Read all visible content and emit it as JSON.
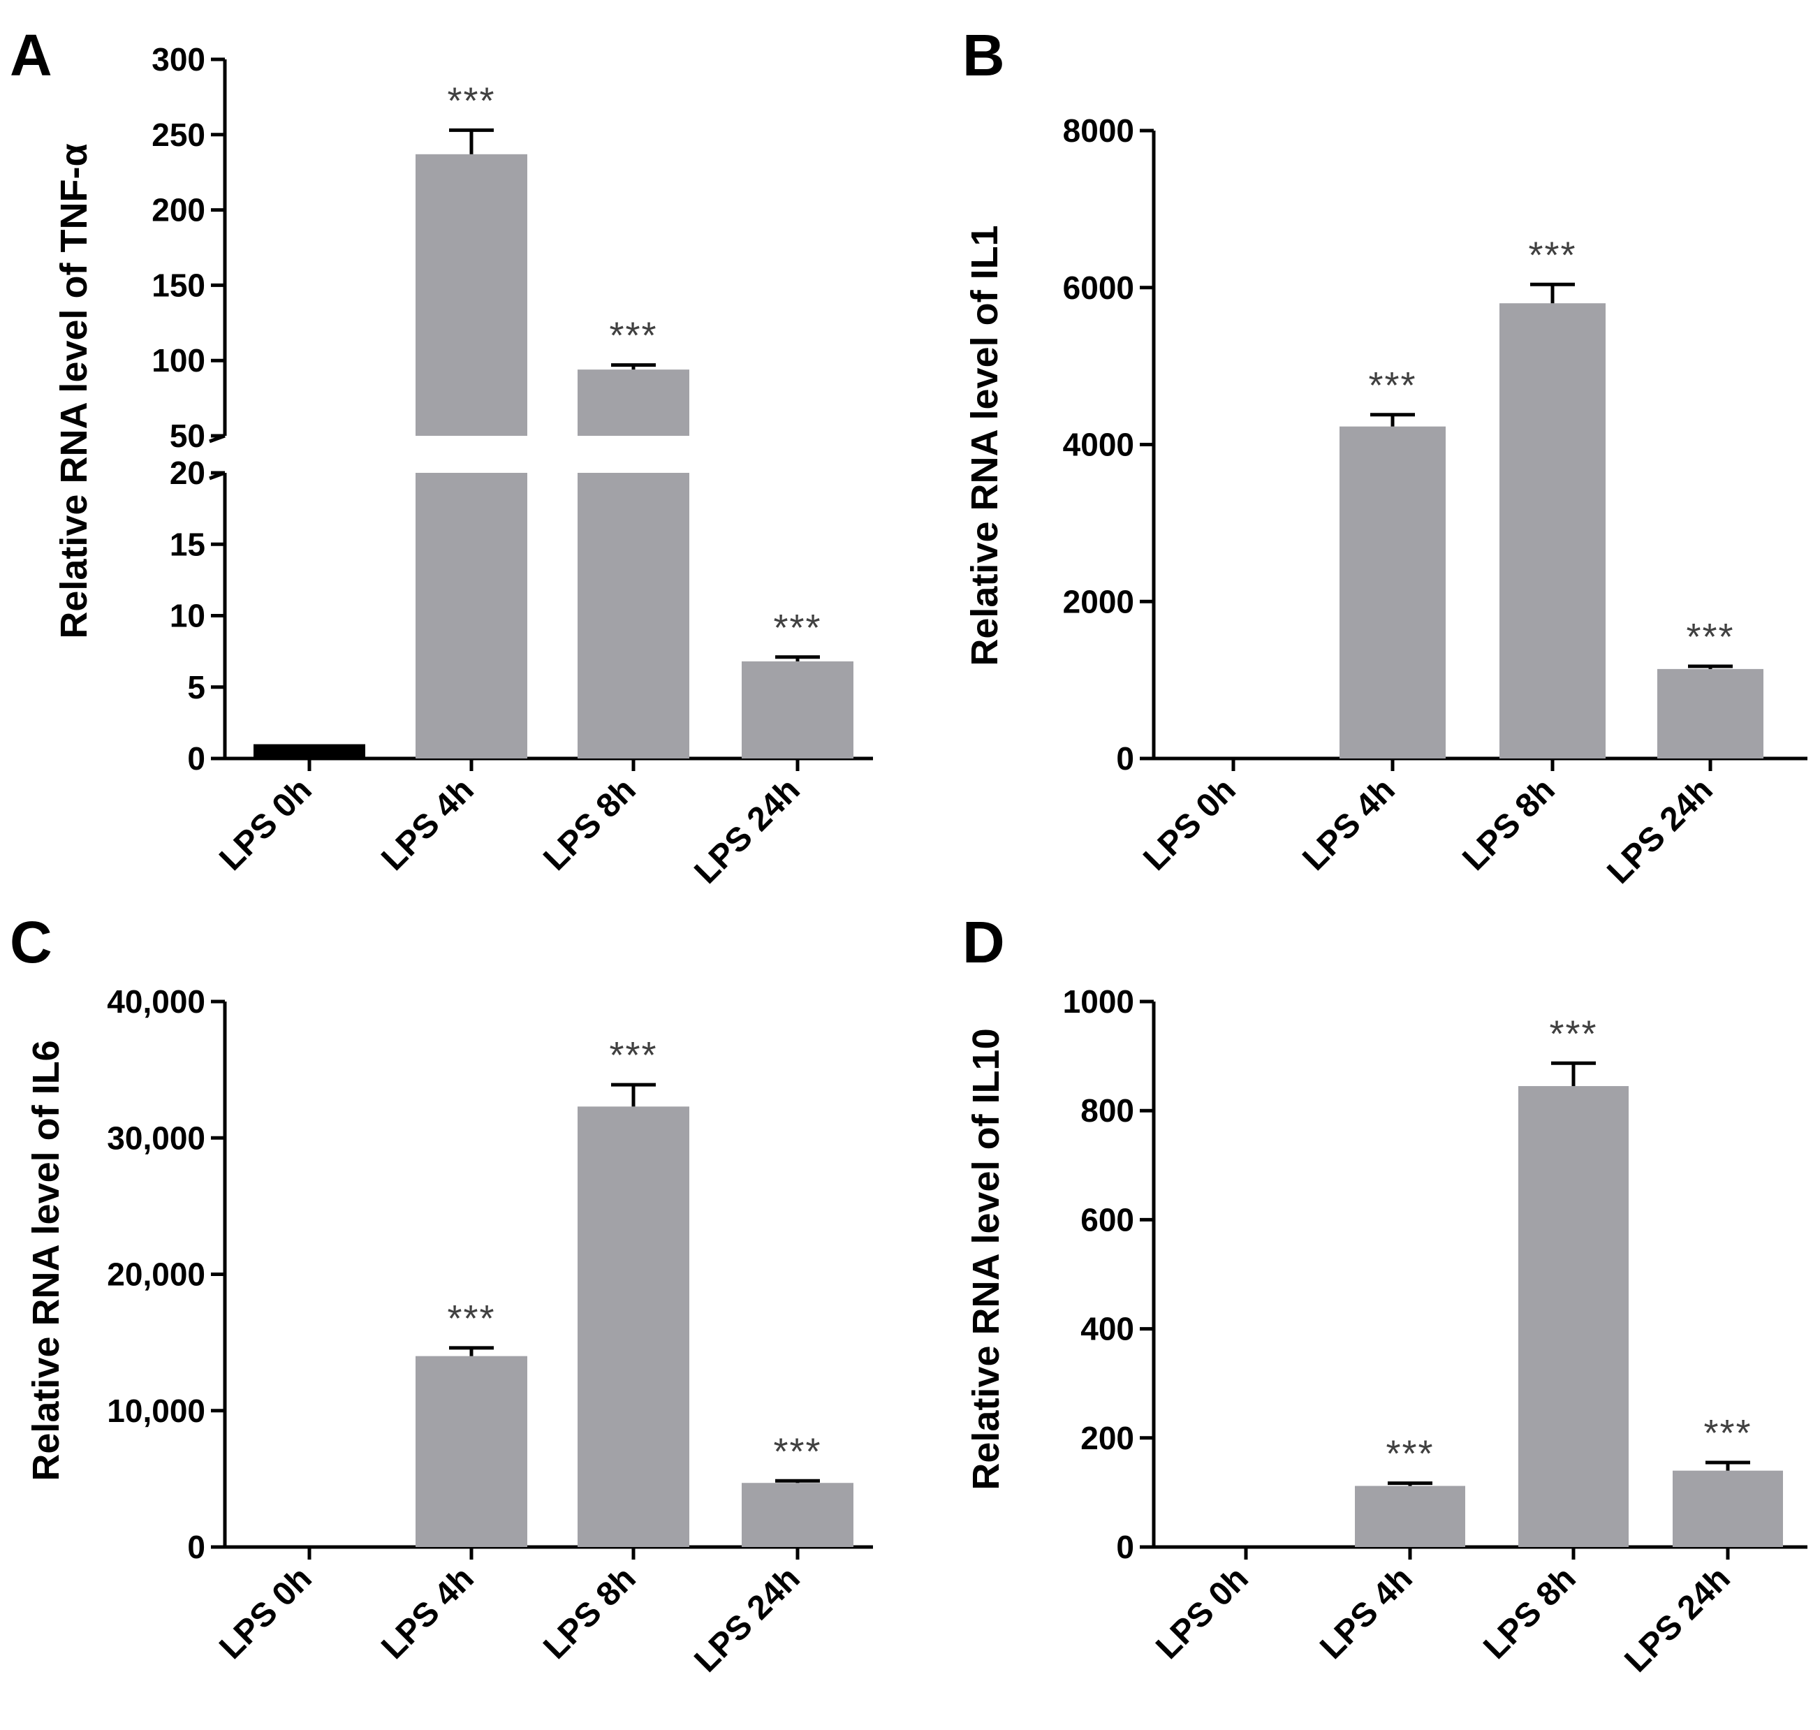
{
  "figure": {
    "bar_color": "#a2a2a7",
    "control_color": "#000000",
    "axis_color": "#000000",
    "significance_color": "#404040"
  },
  "chart_data": [
    {
      "panel": "A",
      "type": "bar",
      "ylabel": "Relative RNA level of TNF-α",
      "categories": [
        "LPS 0h",
        "LPS 4h",
        "LPS 8h",
        "LPS 24h"
      ],
      "values": [
        1,
        237,
        94,
        6.8
      ],
      "errors": [
        0,
        16,
        3,
        0.3
      ],
      "significance": [
        "",
        "***",
        "***",
        "***"
      ],
      "broken_axis": true,
      "lower_segment": {
        "ylim": [
          0,
          20
        ],
        "ticks": [
          0,
          5,
          10,
          15,
          20
        ],
        "tick_labels": [
          "0",
          "5",
          "10",
          "15",
          "20"
        ]
      },
      "upper_segment": {
        "ylim": [
          50,
          300
        ],
        "ticks": [
          50,
          100,
          150,
          200,
          250,
          300
        ],
        "tick_labels": [
          "50",
          "100",
          "150",
          "200",
          "250",
          "300"
        ]
      }
    },
    {
      "panel": "B",
      "type": "bar",
      "ylabel": "Relative RNA level of IL1",
      "categories": [
        "LPS 0h",
        "LPS 4h",
        "LPS 8h",
        "LPS 24h"
      ],
      "values": [
        1,
        4230,
        5800,
        1140
      ],
      "errors": [
        0,
        150,
        240,
        35
      ],
      "significance": [
        "",
        "***",
        "***",
        "***"
      ],
      "ylim": [
        0,
        8000
      ],
      "ticks": [
        0,
        2000,
        4000,
        6000,
        8000
      ],
      "tick_labels": [
        "0",
        "2000",
        "4000",
        "6000",
        "8000"
      ]
    },
    {
      "panel": "C",
      "type": "bar",
      "ylabel": "Relative RNA level of IL6",
      "categories": [
        "LPS 0h",
        "LPS 4h",
        "LPS 8h",
        "LPS 24h"
      ],
      "values": [
        1,
        14000,
        32300,
        4700
      ],
      "errors": [
        0,
        600,
        1600,
        150
      ],
      "significance": [
        "",
        "***",
        "***",
        "***"
      ],
      "ylim": [
        0,
        40000
      ],
      "ticks": [
        0,
        10000,
        20000,
        30000,
        40000
      ],
      "tick_labels": [
        "0",
        "10,000",
        "20,000",
        "30,000",
        "40,000"
      ]
    },
    {
      "panel": "D",
      "type": "bar",
      "ylabel": "Relative RNA level of IL10",
      "categories": [
        "LPS 0h",
        "LPS 4h",
        "LPS 8h",
        "LPS 24h"
      ],
      "values": [
        1,
        112,
        845,
        140
      ],
      "errors": [
        0,
        5,
        42,
        15
      ],
      "significance": [
        "",
        "***",
        "***",
        "***"
      ],
      "ylim": [
        0,
        1000
      ],
      "ticks": [
        0,
        200,
        400,
        600,
        800,
        1000
      ],
      "tick_labels": [
        "0",
        "200",
        "400",
        "600",
        "800",
        "1000"
      ]
    }
  ]
}
